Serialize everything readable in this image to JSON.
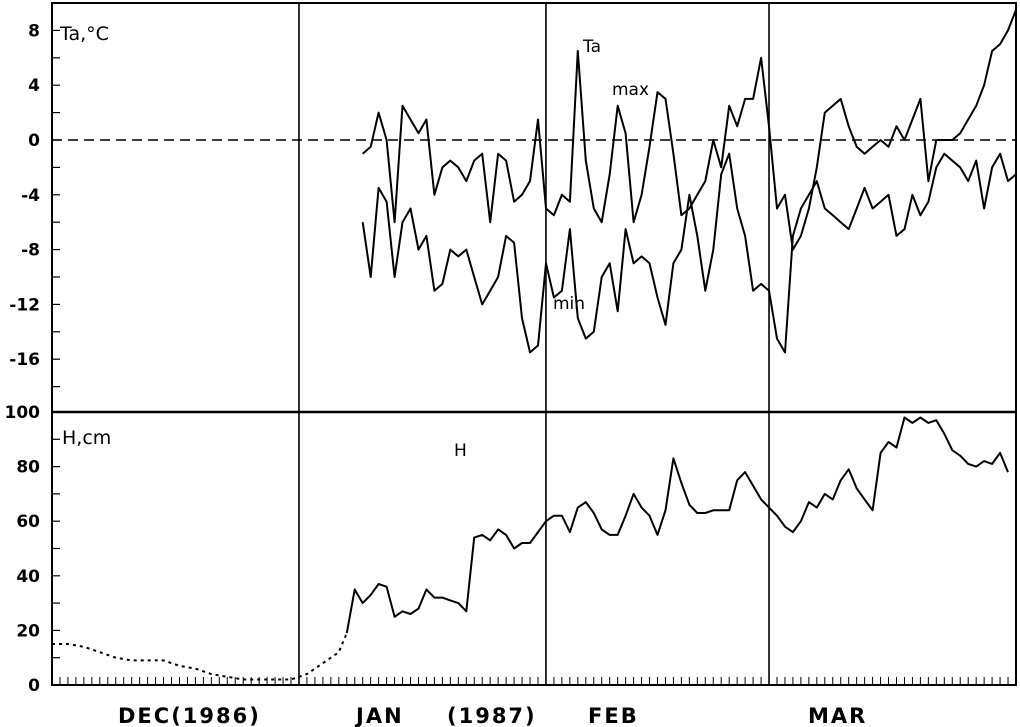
{
  "chart_data": [
    {
      "panel": "air-temperature",
      "type": "line",
      "ylabel": "Ta,°C",
      "ylim": [
        -20,
        10
      ],
      "yticks": [
        8,
        4,
        0,
        -4,
        -8,
        -12,
        -16
      ],
      "ytick_labels": [
        "8",
        "4",
        "0",
        "-4",
        "-8",
        "-12",
        "-16"
      ],
      "reference_line": {
        "y": 0,
        "style": "dashed"
      },
      "annotations": [
        "Ta",
        "max",
        "min"
      ],
      "x_unit": "day index from Dec 1 1986",
      "series": [
        {
          "name": "max",
          "x": [
            39,
            40,
            41,
            42,
            43,
            44,
            45,
            46,
            47,
            48,
            49,
            50,
            51,
            52,
            53,
            54,
            55,
            56,
            57,
            58,
            59,
            60,
            61,
            62,
            63,
            64,
            65,
            66,
            67,
            68,
            69,
            70,
            71,
            72,
            73,
            74,
            75,
            76,
            77,
            78,
            79,
            80,
            81,
            82,
            83,
            84,
            85,
            86,
            87,
            88,
            89,
            90,
            91,
            92,
            93,
            94,
            95,
            96,
            97,
            98,
            99,
            100,
            101,
            102,
            103,
            104,
            105,
            106,
            107,
            108,
            109,
            110,
            111,
            112,
            113,
            114,
            115,
            116,
            117,
            118,
            119,
            120,
            121
          ],
          "values": [
            -1,
            -0.5,
            2,
            0,
            -6,
            2.5,
            1.5,
            0.5,
            1.5,
            -4,
            -2,
            -1.5,
            -2,
            -3,
            -1.5,
            -1,
            -6,
            -1,
            -1.5,
            -4.5,
            -4,
            -3,
            1.5,
            -5,
            -5.5,
            -4,
            -4.5,
            6.5,
            -1.5,
            -5,
            -6,
            -2.5,
            2.5,
            0.5,
            -6,
            -4,
            -0.5,
            3.5,
            3,
            -1,
            -5.5,
            -5,
            -4,
            -3,
            0,
            -2,
            2.5,
            1,
            3,
            3,
            6,
            1,
            -5,
            -4,
            -8,
            -7,
            -5,
            -2,
            2,
            2.5,
            3,
            1,
            -0.5,
            -1,
            -0.5,
            0,
            -0.5,
            1,
            0,
            1.5,
            3,
            -3,
            0,
            0,
            0,
            0.5,
            1.5,
            2.5,
            4,
            6.5,
            7,
            8,
            9.5
          ]
        },
        {
          "name": "min",
          "x": [
            39,
            40,
            41,
            42,
            43,
            44,
            45,
            46,
            47,
            48,
            49,
            50,
            51,
            52,
            53,
            54,
            55,
            56,
            57,
            58,
            59,
            60,
            61,
            62,
            63,
            64,
            65,
            66,
            67,
            68,
            69,
            70,
            71,
            72,
            73,
            74,
            75,
            76,
            77,
            78,
            79,
            80,
            81,
            82,
            83,
            84,
            85,
            86,
            87,
            88,
            89,
            90,
            91,
            92,
            93,
            94,
            95,
            96,
            97,
            98,
            99,
            100,
            101,
            102,
            103,
            104,
            105,
            106,
            107,
            108,
            109,
            110,
            111,
            112,
            113,
            114,
            115,
            116,
            117,
            118,
            119,
            120,
            121
          ],
          "values": [
            -6,
            -10,
            -3.5,
            -4.5,
            -10,
            -6,
            -5,
            -8,
            -7,
            -11,
            -10.5,
            -8,
            -8.5,
            -8,
            -10,
            -12,
            -11,
            -10,
            -7,
            -7.5,
            -13,
            -15.5,
            -15,
            -9,
            -11.5,
            -11,
            -6.5,
            -13,
            -14.5,
            -14,
            -10,
            -9,
            -12.5,
            -6.5,
            -9,
            -8.5,
            -9,
            -11.5,
            -13.5,
            -9,
            -8,
            -4,
            -7,
            -11,
            -8,
            -2.5,
            -1,
            -5,
            -7,
            -11,
            -10.5,
            -11,
            -14.5,
            -15.5,
            -7,
            -5,
            -4,
            -3,
            -5,
            -5.5,
            -6,
            -6.5,
            -5,
            -3.5,
            -5,
            -4.5,
            -4,
            -7,
            -6.5,
            -4,
            -5.5,
            -4.5,
            -2,
            -1,
            -1.5,
            -2,
            -3,
            -1.5,
            -5,
            -2,
            -1,
            -3,
            -2.5
          ]
        }
      ]
    },
    {
      "panel": "snow-depth",
      "type": "line",
      "ylabel": "H,cm",
      "ylim": [
        0,
        100
      ],
      "yticks": [
        0,
        20,
        40,
        60,
        80,
        100
      ],
      "ytick_labels": [
        "0",
        "20",
        "40",
        "60",
        "80",
        "100"
      ],
      "annotations": [
        "H"
      ],
      "x_unit": "day index from Dec 1 1986",
      "series": [
        {
          "name": "H",
          "style": "solid",
          "x": [
            37,
            38,
            39,
            40,
            41,
            42,
            43,
            44,
            45,
            46,
            47,
            48,
            49,
            50,
            51,
            52,
            53,
            54,
            55,
            56,
            57,
            58,
            59,
            60,
            61,
            62,
            63,
            64,
            65,
            66,
            67,
            68,
            69,
            70,
            71,
            72,
            73,
            74,
            75,
            76,
            77,
            78,
            79,
            80,
            81,
            82,
            83,
            84,
            85,
            86,
            87,
            88,
            89,
            90,
            91,
            92,
            93,
            94,
            95,
            96,
            97,
            98,
            99,
            100,
            101,
            102,
            103,
            104,
            105,
            106,
            107,
            108,
            109,
            110,
            111,
            112,
            113,
            114,
            115,
            116,
            117,
            118,
            119,
            120
          ],
          "values": [
            19,
            35,
            30,
            33,
            37,
            36,
            25,
            27,
            26,
            28,
            35,
            32,
            32,
            31,
            30,
            27,
            54,
            55,
            53,
            57,
            55,
            50,
            52,
            52,
            56,
            60,
            62,
            62,
            56,
            65,
            67,
            63,
            57,
            55,
            55,
            62,
            70,
            65,
            62,
            55,
            64,
            83,
            74,
            66,
            63,
            63,
            64,
            64,
            64,
            75,
            78,
            73,
            68,
            65,
            62,
            58,
            56,
            60,
            67,
            65,
            70,
            68,
            75,
            79,
            72,
            68,
            64,
            85,
            89,
            87,
            98,
            96,
            98,
            96,
            97,
            92,
            86,
            84,
            81,
            80,
            82,
            81,
            85,
            78
          ]
        },
        {
          "name": "H (dotted)",
          "style": "dotted",
          "x": [
            0,
            2,
            4,
            6,
            8,
            10,
            12,
            14,
            16,
            18,
            20,
            22,
            24,
            26,
            28,
            30,
            32,
            34,
            36,
            37
          ],
          "values": [
            15,
            15,
            14,
            12,
            10,
            9,
            9,
            9,
            7,
            6,
            4,
            3,
            2,
            2,
            2,
            2,
            4,
            8,
            12,
            19
          ]
        }
      ]
    }
  ],
  "x_axis": {
    "months": [
      {
        "label": "DEC(1986)"
      },
      {
        "label": "JAN"
      },
      {
        "label": "(1987)"
      },
      {
        "label": "FEB"
      },
      {
        "label": "MAR"
      }
    ],
    "dividers": [
      31,
      62,
      90,
      121
    ]
  }
}
